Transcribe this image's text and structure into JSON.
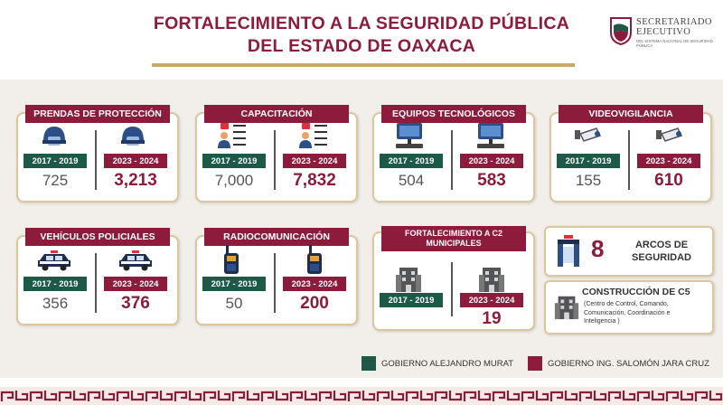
{
  "header": {
    "title_line1": "FORTALECIMIENTO A LA SEGURIDAD PÚBLICA",
    "title_line2": "DEL ESTADO DE OAXACA",
    "logo_line1": "SECRETARIADO",
    "logo_line2": "EJECUTIVO",
    "logo_line3": "DEL SISTEMA NACIONAL DE SEGURIDAD PÚBLICA"
  },
  "period_old": "2017 - 2019",
  "period_new": "2023 - 2024",
  "cards": {
    "prendas": {
      "title": "PRENDAS DE PROTECCIÓN",
      "old": "725",
      "new": "3,213",
      "icon": "police-helmet-icon"
    },
    "capacitacion": {
      "title": "CAPACITACIÓN",
      "old": "7,000",
      "new": "7,832",
      "icon": "training-checklist-icon"
    },
    "equipos": {
      "title": "EQUIPOS TECNOLÓGICOS",
      "old": "504",
      "new": "583",
      "icon": "computer-icon"
    },
    "video": {
      "title": "VIDEOVIGILANCIA",
      "old": "155",
      "new": "610",
      "icon": "cctv-camera-icon"
    },
    "vehiculos": {
      "title": "VEHÍCULOS POLICIALES",
      "old": "356",
      "new": "376",
      "icon": "police-car-icon"
    },
    "radio": {
      "title": "RADIOCOMUNICACIÓN",
      "old": "50",
      "new": "200",
      "icon": "radio-icon"
    },
    "c2": {
      "title_line1": "FORTALECIMIENTO A C2",
      "title_line2": "MUNICIPALES",
      "new": "19",
      "icon": "building-icon"
    }
  },
  "arcos": {
    "number": "8",
    "label_line1": "ARCOS DE",
    "label_line2": "SEGURIDAD",
    "icon": "security-arch-icon"
  },
  "c5": {
    "title": "CONSTRUCCIÓN DE C5",
    "desc_line1": "(Centro de Control, Comando,",
    "desc_line2": "Comunicación, Coordinación e",
    "desc_line3": "Inteligencia )",
    "icon": "building-icon"
  },
  "legend": {
    "green_label": "GOBIERNO ALEJANDRO MURAT",
    "red_label": "GOBIERNO ING. SALOMÓN JARA CRUZ"
  },
  "colors": {
    "maroon": "#8c1b3c",
    "green": "#1c5a47",
    "gold": "#c8a86b"
  }
}
